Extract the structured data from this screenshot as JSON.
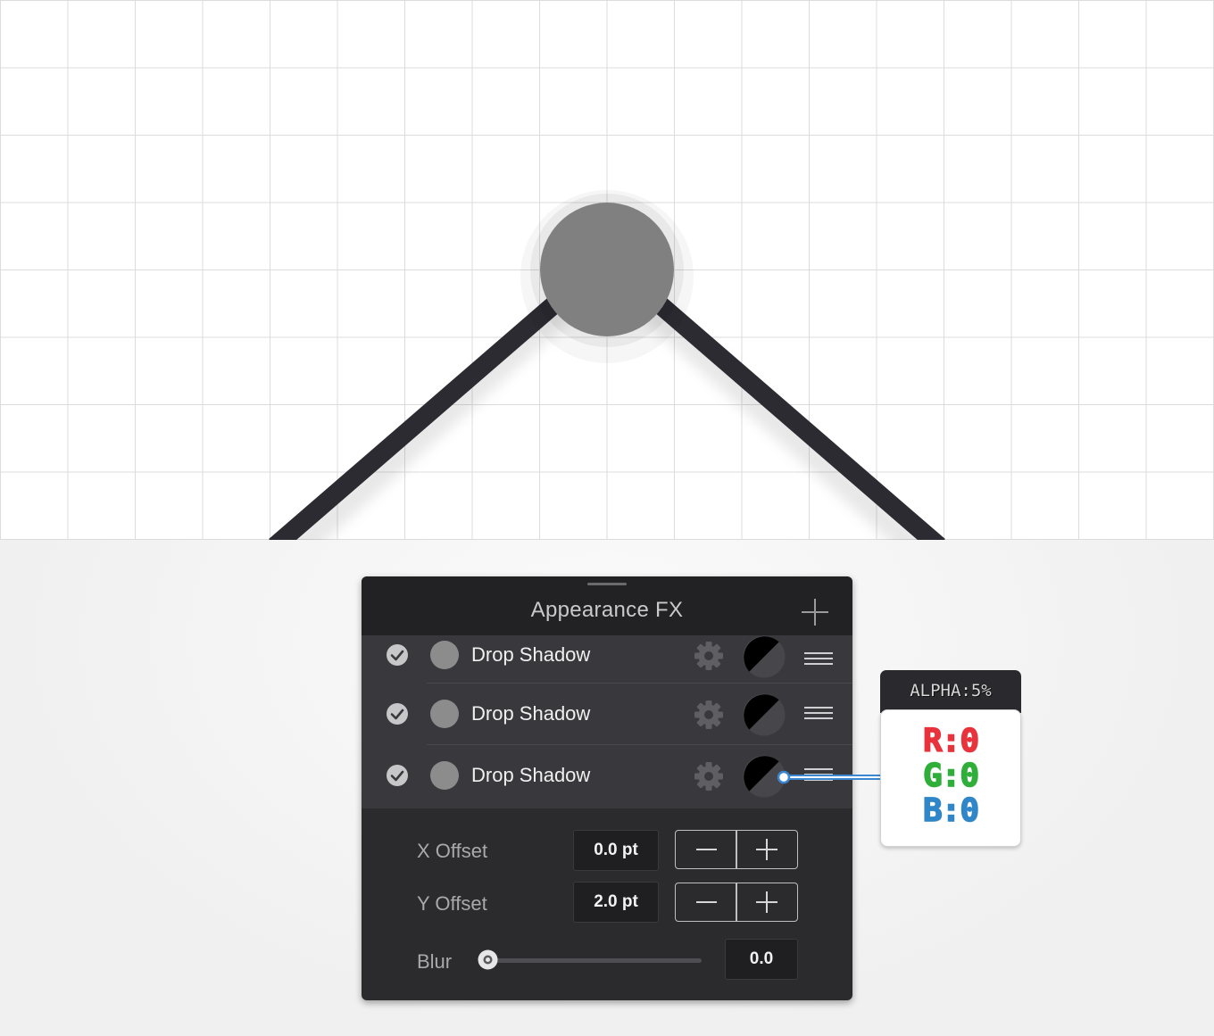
{
  "canvas": {
    "stroke_color": "#2c2b31",
    "node_color": "#808080"
  },
  "panel": {
    "title": "Appearance FX",
    "add_icon": "plus-icon",
    "effects": [
      {
        "label": "Drop Shadow",
        "enabled": true,
        "swatch_color": "#8c8c8c"
      },
      {
        "label": "Drop Shadow",
        "enabled": true,
        "swatch_color": "#8c8c8c"
      },
      {
        "label": "Drop Shadow",
        "enabled": true,
        "swatch_color": "#8c8c8c",
        "selected": true
      }
    ],
    "params": {
      "x_offset": {
        "label": "X Offset",
        "value": "0.0 pt"
      },
      "y_offset": {
        "label": "Y Offset",
        "value": "2.0 pt"
      },
      "blur": {
        "label": "Blur",
        "value": "0.0",
        "level": 0
      }
    }
  },
  "color_popup": {
    "alpha": "ALPHA:5%",
    "r": "R:0",
    "g": "G:0",
    "b": "B:0",
    "colors": {
      "r": "#e8323c",
      "g": "#2fae3a",
      "b": "#2f86c8"
    }
  }
}
